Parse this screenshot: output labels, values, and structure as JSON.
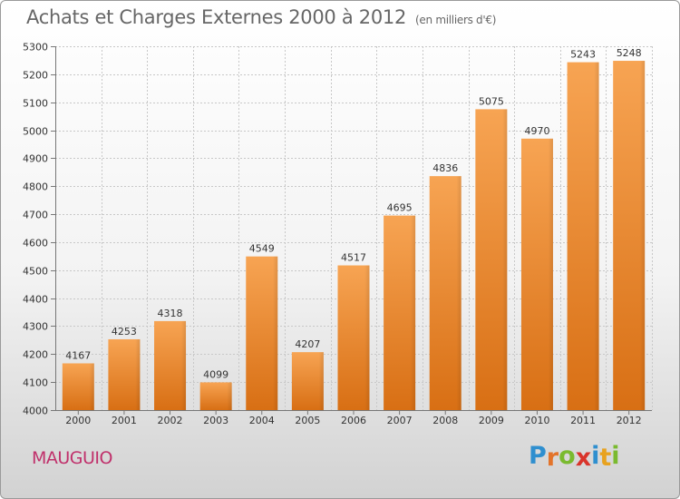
{
  "header": {
    "title": "Achats et Charges Externes 2000 à 2012",
    "unit_note": "(en milliers d'€)"
  },
  "footer": {
    "city": "MAUGUIO",
    "logo_letters": [
      {
        "char": "P",
        "color": "#2f8fcf"
      },
      {
        "char": "r",
        "color": "#e3742a"
      },
      {
        "char": "o",
        "color": "#7aba2f"
      },
      {
        "char": "x",
        "color": "#d9342b"
      },
      {
        "char": "i",
        "color": "#2f8fcf"
      },
      {
        "char": "t",
        "color": "#e8a21f"
      },
      {
        "char": "i",
        "color": "#7aba2f"
      }
    ]
  },
  "colors": {
    "bar_top": "#f7a453",
    "bar_bottom": "#d86f14",
    "grid": "#c8c8c8",
    "axis": "#777777",
    "text": "#333333"
  },
  "chart_data": {
    "type": "bar",
    "categories": [
      "2000",
      "2001",
      "2002",
      "2003",
      "2004",
      "2005",
      "2006",
      "2007",
      "2008",
      "2009",
      "2010",
      "2011",
      "2012"
    ],
    "values": [
      4167,
      4253,
      4318,
      4099,
      4549,
      4207,
      4517,
      4695,
      4836,
      5075,
      4970,
      5243,
      5248
    ],
    "title": "Achats et Charges Externes 2000 à 2012",
    "subtitle": "(en milliers d'€)",
    "xlabel": "",
    "ylabel": "",
    "ylim": [
      4000,
      5300
    ],
    "yticks": [
      4000,
      4100,
      4200,
      4300,
      4400,
      4500,
      4600,
      4700,
      4800,
      4900,
      5000,
      5100,
      5200,
      5300
    ],
    "grid": true,
    "data_labels": true
  }
}
